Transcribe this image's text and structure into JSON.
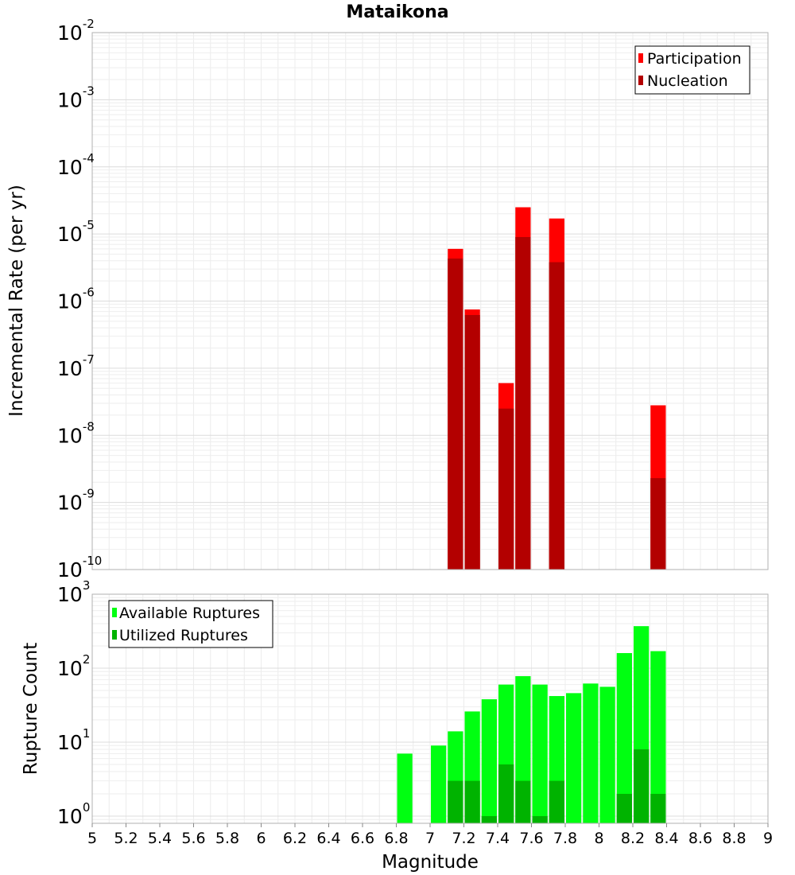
{
  "chart_data": [
    {
      "type": "bar",
      "title": "Mataikona",
      "xlabel": "Magnitude",
      "ylabel": "Incremental Rate (per yr)",
      "yscale": "log",
      "xlim": [
        5,
        9
      ],
      "ylim": [
        1e-10,
        0.01
      ],
      "yticks": [
        {
          "base": "10",
          "exp": "-10"
        },
        {
          "base": "10",
          "exp": "-9"
        },
        {
          "base": "10",
          "exp": "-8"
        },
        {
          "base": "10",
          "exp": "-7"
        },
        {
          "base": "10",
          "exp": "-6"
        },
        {
          "base": "10",
          "exp": "-5"
        },
        {
          "base": "10",
          "exp": "-4"
        },
        {
          "base": "10",
          "exp": "-3"
        },
        {
          "base": "10",
          "exp": "-2"
        }
      ],
      "legend_position": "top-right",
      "series": [
        {
          "name": "Participation",
          "color": "#ff0000",
          "x": [
            7.15,
            7.25,
            7.45,
            7.55,
            7.75,
            8.35
          ],
          "values": [
            6e-06,
            7.5e-07,
            6e-08,
            2.5e-05,
            1.7e-05,
            2.8e-08
          ]
        },
        {
          "name": "Nucleation",
          "color": "#b30000",
          "x": [
            7.15,
            7.25,
            7.45,
            7.55,
            7.75,
            8.35
          ],
          "values": [
            4.3e-06,
            6.2e-07,
            2.5e-08,
            9e-06,
            3.8e-06,
            2.3e-09
          ]
        }
      ]
    },
    {
      "type": "bar",
      "xlabel": "Magnitude",
      "ylabel": "Rupture Count",
      "yscale": "log",
      "xlim": [
        5,
        9
      ],
      "ylim": [
        0.8,
        1000
      ],
      "yticks": [
        {
          "base": "10",
          "exp": "0"
        },
        {
          "base": "10",
          "exp": "1"
        },
        {
          "base": "10",
          "exp": "2"
        },
        {
          "base": "10",
          "exp": "3"
        }
      ],
      "xticks": [
        "5",
        "5.2",
        "5.4",
        "5.6",
        "5.8",
        "6",
        "6.2",
        "6.4",
        "6.6",
        "6.8",
        "7",
        "7.2",
        "7.4",
        "7.6",
        "7.8",
        "8",
        "8.2",
        "8.4",
        "8.6",
        "8.8",
        "9"
      ],
      "legend_position": "top-left",
      "series": [
        {
          "name": "Available Ruptures",
          "color": "#00ff11",
          "x": [
            6.85,
            7.05,
            7.15,
            7.25,
            7.35,
            7.45,
            7.55,
            7.65,
            7.75,
            7.85,
            7.95,
            8.05,
            8.15,
            8.25,
            8.35
          ],
          "values": [
            7,
            9,
            14,
            26,
            38,
            60,
            78,
            60,
            42,
            46,
            62,
            56,
            160,
            370,
            170
          ]
        },
        {
          "name": "Utilized Ruptures",
          "color": "#00b300",
          "x": [
            7.15,
            7.25,
            7.35,
            7.45,
            7.55,
            7.65,
            7.75,
            8.15,
            8.25,
            8.35
          ],
          "values": [
            3,
            3,
            1,
            5,
            3,
            1,
            3,
            2,
            8,
            2
          ]
        }
      ]
    }
  ]
}
